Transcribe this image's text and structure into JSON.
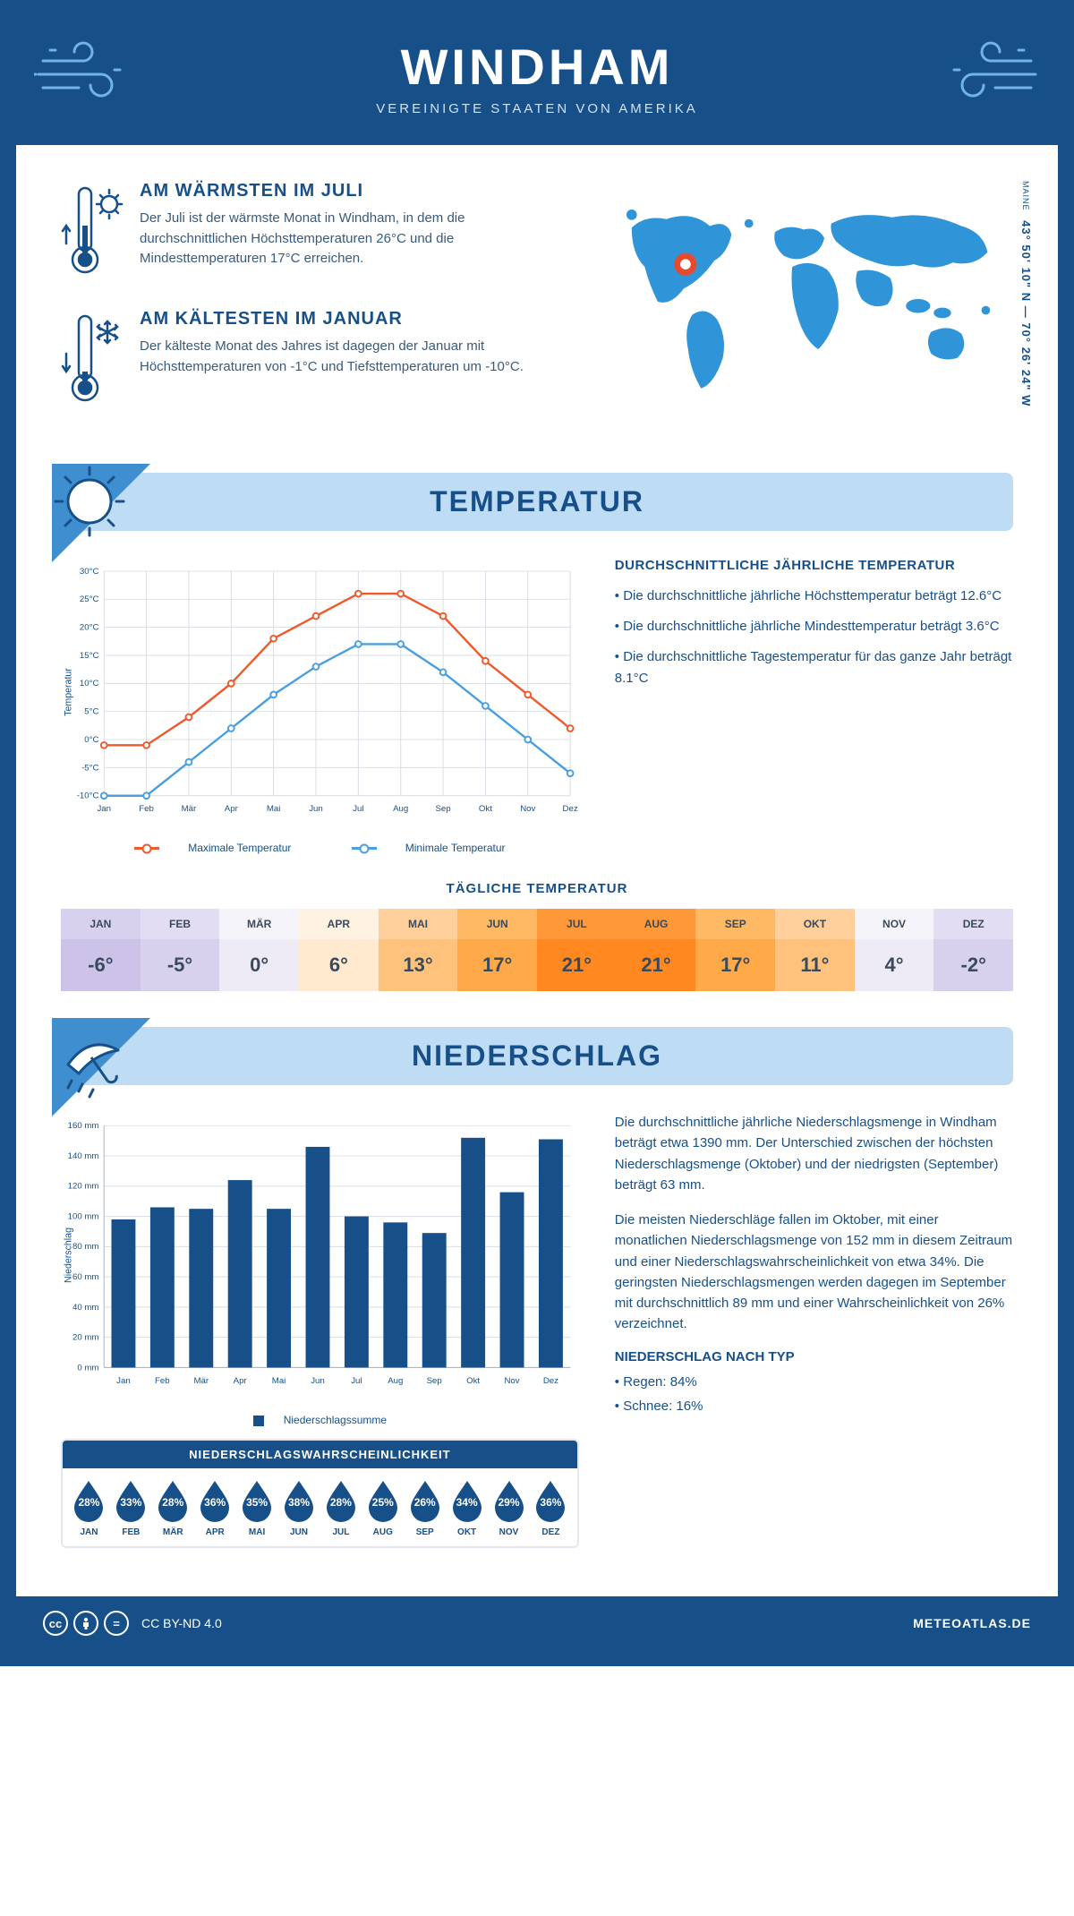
{
  "header": {
    "city": "WINDHAM",
    "country": "VEREINIGTE STAATEN VON AMERIKA"
  },
  "coords": {
    "region": "MAINE",
    "text": "43° 50' 10\" N — 70° 26' 24\" W"
  },
  "facts": {
    "warm": {
      "title": "AM WÄRMSTEN IM JULI",
      "text": "Der Juli ist der wärmste Monat in Windham, in dem die durchschnittlichen Höchsttemperaturen 26°C und die Mindesttemperaturen 17°C erreichen."
    },
    "cold": {
      "title": "AM KÄLTESTEN IM JANUAR",
      "text": "Der kälteste Monat des Jahres ist dagegen der Januar mit Höchsttemperaturen von -1°C und Tiefsttemperaturen um -10°C."
    }
  },
  "sections": {
    "temp": "TEMPERATUR",
    "precip": "NIEDERSCHLAG"
  },
  "temp_chart": {
    "months": [
      "Jan",
      "Feb",
      "Mär",
      "Apr",
      "Mai",
      "Jun",
      "Jul",
      "Aug",
      "Sep",
      "Okt",
      "Nov",
      "Dez"
    ],
    "max": [
      -1,
      -1,
      4,
      10,
      18,
      22,
      26,
      26,
      22,
      14,
      8,
      2
    ],
    "min": [
      -10,
      -10,
      -4,
      2,
      8,
      13,
      17,
      17,
      12,
      6,
      0,
      -6
    ],
    "ylim": [
      -10,
      30
    ],
    "ytick_step": 5,
    "max_color": "#ee5a2b",
    "min_color": "#4a9fe0",
    "grid_color": "#d8dde4",
    "ylabel": "Temperatur",
    "legend_max": "Maximale Temperatur",
    "legend_min": "Minimale Temperatur"
  },
  "temp_text": {
    "heading": "DURCHSCHNITTLICHE JÄHRLICHE TEMPERATUR",
    "b1": "• Die durchschnittliche jährliche Höchsttemperatur beträgt 12.6°C",
    "b2": "• Die durchschnittliche jährliche Mindesttemperatur beträgt 3.6°C",
    "b3": "• Die durchschnittliche Tagestemperatur für das ganze Jahr beträgt 8.1°C"
  },
  "daily": {
    "title": "TÄGLICHE TEMPERATUR",
    "months": [
      "JAN",
      "FEB",
      "MÄR",
      "APR",
      "MAI",
      "JUN",
      "JUL",
      "AUG",
      "SEP",
      "OKT",
      "NOV",
      "DEZ"
    ],
    "values": [
      "-6°",
      "-5°",
      "0°",
      "6°",
      "13°",
      "17°",
      "21°",
      "21°",
      "17°",
      "11°",
      "4°",
      "-2°"
    ],
    "header_colors": [
      "#d8d1ee",
      "#e2ddf2",
      "#f5f4fa",
      "#fff2e3",
      "#ffd09b",
      "#ffb864",
      "#ff9838",
      "#ff9838",
      "#ffb864",
      "#ffd09b",
      "#f5f4fa",
      "#e2ddf2"
    ],
    "value_colors": [
      "#cdc3e9",
      "#d8d1ee",
      "#eeebf6",
      "#ffe9cf",
      "#ffc27d",
      "#ffa948",
      "#ff8820",
      "#ff8820",
      "#ffa948",
      "#ffc27d",
      "#eeebf6",
      "#d8d1ee"
    ]
  },
  "precip_chart": {
    "months": [
      "Jan",
      "Feb",
      "Mär",
      "Apr",
      "Mai",
      "Jun",
      "Jul",
      "Aug",
      "Sep",
      "Okt",
      "Nov",
      "Dez"
    ],
    "values": [
      98,
      106,
      105,
      124,
      105,
      146,
      100,
      96,
      89,
      152,
      116,
      151
    ],
    "ylim": [
      0,
      160
    ],
    "ytick_step": 20,
    "bar_color": "#175089",
    "grid_color": "#d8dde4",
    "ylabel": "Niederschlag",
    "legend": "Niederschlagssumme"
  },
  "precip_text": {
    "p1": "Die durchschnittliche jährliche Niederschlagsmenge in Windham beträgt etwa 1390 mm. Der Unterschied zwischen der höchsten Niederschlagsmenge (Oktober) und der niedrigsten (September) beträgt 63 mm.",
    "p2": "Die meisten Niederschläge fallen im Oktober, mit einer monatlichen Niederschlagsmenge von 152 mm in diesem Zeitraum und einer Niederschlagswahrscheinlichkeit von etwa 34%. Die geringsten Niederschlagsmengen werden dagegen im September mit durchschnittlich 89 mm und einer Wahrscheinlichkeit von 26% verzeichnet.",
    "type_heading": "NIEDERSCHLAG NACH TYP",
    "rain": "• Regen: 84%",
    "snow": "• Schnee: 16%"
  },
  "prob": {
    "title": "NIEDERSCHLAGSWAHRSCHEINLICHKEIT",
    "months": [
      "JAN",
      "FEB",
      "MÄR",
      "APR",
      "MAI",
      "JUN",
      "JUL",
      "AUG",
      "SEP",
      "OKT",
      "NOV",
      "DEZ"
    ],
    "values": [
      "28%",
      "33%",
      "28%",
      "36%",
      "35%",
      "38%",
      "28%",
      "25%",
      "26%",
      "34%",
      "29%",
      "36%"
    ]
  },
  "footer": {
    "license": "CC BY-ND 4.0",
    "site": "METEOATLAS.DE"
  }
}
